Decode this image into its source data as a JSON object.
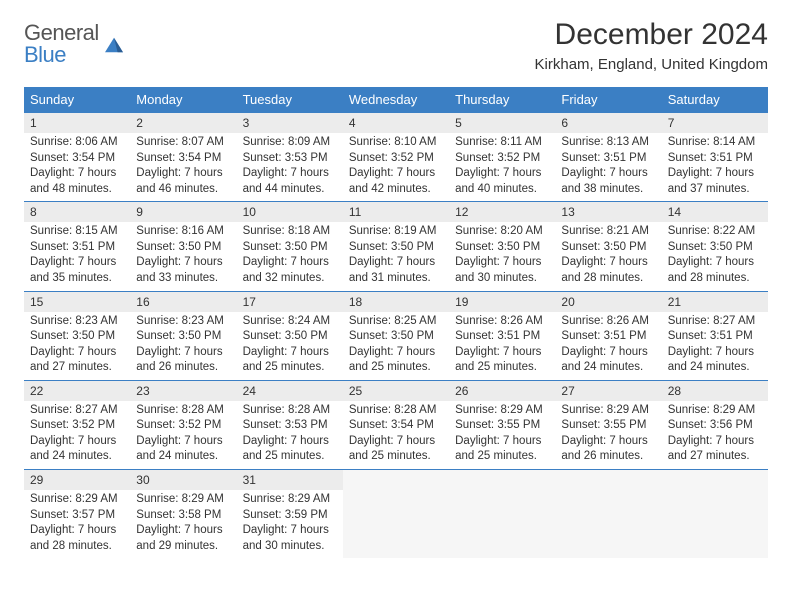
{
  "brand": {
    "top": "General",
    "bottom": "Blue"
  },
  "title": "December 2024",
  "location": "Kirkham, England, United Kingdom",
  "colors": {
    "accent": "#3b7fc4",
    "daynum_bg": "#ececec",
    "empty_bg": "#f6f6f6",
    "text": "#333333",
    "page_bg": "#ffffff"
  },
  "weekdays": [
    "Sunday",
    "Monday",
    "Tuesday",
    "Wednesday",
    "Thursday",
    "Friday",
    "Saturday"
  ],
  "days": [
    {
      "n": 1,
      "sunrise": "8:06 AM",
      "sunset": "3:54 PM",
      "daylight": "7 hours and 48 minutes."
    },
    {
      "n": 2,
      "sunrise": "8:07 AM",
      "sunset": "3:54 PM",
      "daylight": "7 hours and 46 minutes."
    },
    {
      "n": 3,
      "sunrise": "8:09 AM",
      "sunset": "3:53 PM",
      "daylight": "7 hours and 44 minutes."
    },
    {
      "n": 4,
      "sunrise": "8:10 AM",
      "sunset": "3:52 PM",
      "daylight": "7 hours and 42 minutes."
    },
    {
      "n": 5,
      "sunrise": "8:11 AM",
      "sunset": "3:52 PM",
      "daylight": "7 hours and 40 minutes."
    },
    {
      "n": 6,
      "sunrise": "8:13 AM",
      "sunset": "3:51 PM",
      "daylight": "7 hours and 38 minutes."
    },
    {
      "n": 7,
      "sunrise": "8:14 AM",
      "sunset": "3:51 PM",
      "daylight": "7 hours and 37 minutes."
    },
    {
      "n": 8,
      "sunrise": "8:15 AM",
      "sunset": "3:51 PM",
      "daylight": "7 hours and 35 minutes."
    },
    {
      "n": 9,
      "sunrise": "8:16 AM",
      "sunset": "3:50 PM",
      "daylight": "7 hours and 33 minutes."
    },
    {
      "n": 10,
      "sunrise": "8:18 AM",
      "sunset": "3:50 PM",
      "daylight": "7 hours and 32 minutes."
    },
    {
      "n": 11,
      "sunrise": "8:19 AM",
      "sunset": "3:50 PM",
      "daylight": "7 hours and 31 minutes."
    },
    {
      "n": 12,
      "sunrise": "8:20 AM",
      "sunset": "3:50 PM",
      "daylight": "7 hours and 30 minutes."
    },
    {
      "n": 13,
      "sunrise": "8:21 AM",
      "sunset": "3:50 PM",
      "daylight": "7 hours and 28 minutes."
    },
    {
      "n": 14,
      "sunrise": "8:22 AM",
      "sunset": "3:50 PM",
      "daylight": "7 hours and 28 minutes."
    },
    {
      "n": 15,
      "sunrise": "8:23 AM",
      "sunset": "3:50 PM",
      "daylight": "7 hours and 27 minutes."
    },
    {
      "n": 16,
      "sunrise": "8:23 AM",
      "sunset": "3:50 PM",
      "daylight": "7 hours and 26 minutes."
    },
    {
      "n": 17,
      "sunrise": "8:24 AM",
      "sunset": "3:50 PM",
      "daylight": "7 hours and 25 minutes."
    },
    {
      "n": 18,
      "sunrise": "8:25 AM",
      "sunset": "3:50 PM",
      "daylight": "7 hours and 25 minutes."
    },
    {
      "n": 19,
      "sunrise": "8:26 AM",
      "sunset": "3:51 PM",
      "daylight": "7 hours and 25 minutes."
    },
    {
      "n": 20,
      "sunrise": "8:26 AM",
      "sunset": "3:51 PM",
      "daylight": "7 hours and 24 minutes."
    },
    {
      "n": 21,
      "sunrise": "8:27 AM",
      "sunset": "3:51 PM",
      "daylight": "7 hours and 24 minutes."
    },
    {
      "n": 22,
      "sunrise": "8:27 AM",
      "sunset": "3:52 PM",
      "daylight": "7 hours and 24 minutes."
    },
    {
      "n": 23,
      "sunrise": "8:28 AM",
      "sunset": "3:52 PM",
      "daylight": "7 hours and 24 minutes."
    },
    {
      "n": 24,
      "sunrise": "8:28 AM",
      "sunset": "3:53 PM",
      "daylight": "7 hours and 25 minutes."
    },
    {
      "n": 25,
      "sunrise": "8:28 AM",
      "sunset": "3:54 PM",
      "daylight": "7 hours and 25 minutes."
    },
    {
      "n": 26,
      "sunrise": "8:29 AM",
      "sunset": "3:55 PM",
      "daylight": "7 hours and 25 minutes."
    },
    {
      "n": 27,
      "sunrise": "8:29 AM",
      "sunset": "3:55 PM",
      "daylight": "7 hours and 26 minutes."
    },
    {
      "n": 28,
      "sunrise": "8:29 AM",
      "sunset": "3:56 PM",
      "daylight": "7 hours and 27 minutes."
    },
    {
      "n": 29,
      "sunrise": "8:29 AM",
      "sunset": "3:57 PM",
      "daylight": "7 hours and 28 minutes."
    },
    {
      "n": 30,
      "sunrise": "8:29 AM",
      "sunset": "3:58 PM",
      "daylight": "7 hours and 29 minutes."
    },
    {
      "n": 31,
      "sunrise": "8:29 AM",
      "sunset": "3:59 PM",
      "daylight": "7 hours and 30 minutes."
    }
  ],
  "labels": {
    "sunrise_prefix": "Sunrise: ",
    "sunset_prefix": "Sunset: ",
    "daylight_prefix": "Daylight: "
  }
}
